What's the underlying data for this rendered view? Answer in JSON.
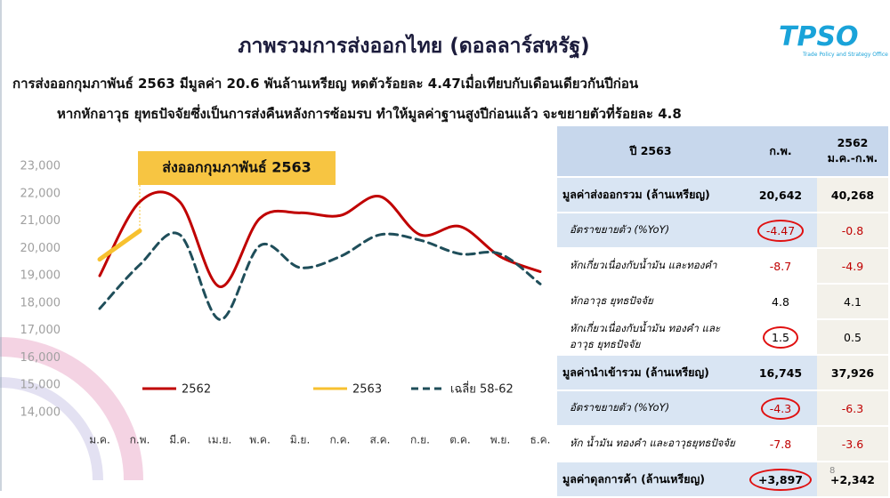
{
  "header": {
    "title": "ภาพรวมการส่งออกไทย (ดอลลาร์สหรัฐ)",
    "subtitle_lines": [
      "การส่งออกกุมภาพันธ์ 2563 มีมูลค่า 20.6 พันล้านเหรียญ หดตัวร้อยละ 4.47เมื่อเทียบกับเดือนเดียวกันปีก่อน",
      "หากหักอาวุธ ยุทธปัจจัยซึ่งเป็นการส่งคืนหลังการซ้อมรบ ทำให้มูลค่าฐานสูงปีก่อนแล้ว จะขยายตัวที่ร้อยละ 4.8"
    ],
    "logo": "TPSO",
    "logo_caption": "Trade Policy and Strategy Office"
  },
  "chart_data": {
    "type": "line",
    "annotation": "ส่งออกกุมภาพันธ์ 2563",
    "categories": [
      "ม.ค.",
      "ก.พ.",
      "มี.ค.",
      "เม.ย.",
      "พ.ค.",
      "มิ.ย.",
      "ก.ค.",
      "ส.ค.",
      "ก.ย.",
      "ต.ค.",
      "พ.ย.",
      "ธ.ค."
    ],
    "series": [
      {
        "name": "2562",
        "color": "#c00000",
        "dash": false,
        "values": [
          19000,
          21700,
          21700,
          18600,
          21100,
          21300,
          21200,
          21900,
          20500,
          20800,
          19700,
          19150
        ]
      },
      {
        "name": "2563",
        "color": "#f7c12f",
        "dash": false,
        "values": [
          19600,
          20642,
          null,
          null,
          null,
          null,
          null,
          null,
          null,
          null,
          null,
          null
        ]
      },
      {
        "name": "เฉลี่ย 58-62",
        "color": "#1f4e5a",
        "dash": true,
        "values": [
          17800,
          19400,
          20500,
          17400,
          20100,
          19300,
          19700,
          20500,
          20300,
          19800,
          19800,
          18700
        ]
      }
    ],
    "ylim": [
      14000,
      23000
    ],
    "yticks": [
      {
        "value": 14000,
        "label": "14,000"
      },
      {
        "value": 15000,
        "label": "15,000"
      },
      {
        "value": 16000,
        "label": "16,000"
      },
      {
        "value": 17000,
        "label": "17,000"
      },
      {
        "value": 18000,
        "label": "18,000"
      },
      {
        "value": 19000,
        "label": "19,000"
      },
      {
        "value": 20000,
        "label": "20,000"
      },
      {
        "value": 21000,
        "label": "21,000"
      },
      {
        "value": 22000,
        "label": "22,000"
      },
      {
        "value": 23000,
        "label": "23,000"
      }
    ],
    "grid": false,
    "legend": "bottom"
  },
  "table": {
    "header": [
      "ปี 2563",
      "ก.พ.",
      "2562",
      "ม.ค.-ก.พ."
    ],
    "rows": [
      [
        "มูลค่าส่งออกรวม (ล้านเหรียญ)",
        "20,642",
        "40,268"
      ],
      [
        "อัตราขยายตัว (%YoY)",
        "-4.47",
        "-0.8"
      ],
      [
        "หักเกี่ยวเนื่องกับน้ำมัน และทองคำ",
        "-8.7",
        "-4.9"
      ],
      [
        "หักอาวุธ ยุทธปัจจัย",
        "4.8",
        "4.1"
      ],
      [
        "หักเกี่ยวเนื่องกับน้ำมัน ทองคำ และอาวุธ ยุทธปัจจัย",
        "1.5",
        "0.5"
      ],
      [
        "มูลค่านำเข้ารวม (ล้านเหรียญ)",
        "16,745",
        "37,926"
      ],
      [
        "อัตราขยายตัว (%YoY)",
        "-4.3",
        "-6.3"
      ],
      [
        "หัก น้ำมัน ทองคำ และอาวุธยุทธปัจจัย",
        "-7.8",
        "-3.6"
      ],
      [
        "มูลค่าดุลการค้า (ล้านเหรียญ)",
        "+3,897",
        "+2,342"
      ]
    ]
  },
  "page_number": "8"
}
